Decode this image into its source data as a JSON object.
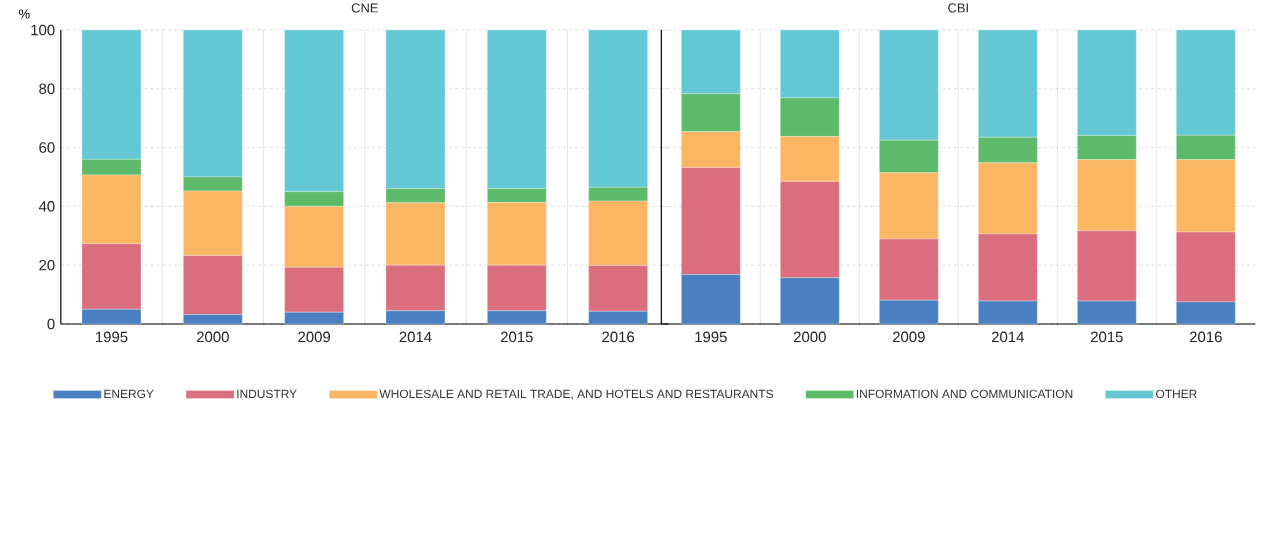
{
  "chart_data": [
    {
      "type": "bar",
      "stacked": true,
      "title": "CNE",
      "ylabel": "%",
      "categories": [
        "1995",
        "2000",
        "2009",
        "2014",
        "2015",
        "2016"
      ],
      "ylim": [
        0,
        100
      ],
      "yticks": [
        0,
        20,
        40,
        60,
        80,
        100
      ],
      "grid": "y",
      "legend": "bottom",
      "series": [
        {
          "name": "ENERGY",
          "color": "#4a7fc1",
          "values": [
            5,
            3.2,
            4,
            4.5,
            4.5,
            4.3
          ]
        },
        {
          "name": "INDUSTRY",
          "color": "#db6e7e",
          "values": [
            22.3,
            20.1,
            15.3,
            15.5,
            15.5,
            15.6
          ]
        },
        {
          "name": "WHOLESALE AND RETAIL TRADE, AND HOTELS AND RESTAURANTS",
          "color": "#fbb664",
          "values": [
            23.4,
            21.9,
            20.7,
            21.2,
            21.3,
            21.9
          ]
        },
        {
          "name": "INFORMATION AND COMMUNICATION",
          "color": "#5dba6a",
          "values": [
            5.3,
            4.8,
            5,
            4.9,
            4.8,
            4.7
          ]
        },
        {
          "name": "OTHER",
          "color": "#63c7d4",
          "values": [
            44,
            50,
            55,
            53.9,
            53.9,
            53.5
          ]
        }
      ]
    },
    {
      "type": "bar",
      "stacked": true,
      "title": "CBI",
      "categories": [
        "1995",
        "2000",
        "2009",
        "2014",
        "2015",
        "2016"
      ],
      "ylim": [
        0,
        100
      ],
      "yticks": [
        0,
        20,
        40,
        60,
        80,
        100
      ],
      "grid": "y",
      "tick_labels": "x",
      "series": [
        {
          "color": "#4a7fc1",
          "values": [
            16.8,
            15.7,
            8.1,
            7.8,
            7.8,
            7.5
          ]
        },
        {
          "color": "#db6e7e",
          "values": [
            36.4,
            32.8,
            20.8,
            22.8,
            23.9,
            23.8
          ]
        },
        {
          "color": "#fbb664",
          "values": [
            12.2,
            15.3,
            22.5,
            24.2,
            24.2,
            24.6
          ]
        },
        {
          "color": "#5dba6a",
          "values": [
            12.9,
            13.1,
            11.1,
            8.7,
            8.2,
            8.3
          ]
        },
        {
          "color": "#63c7d4",
          "values": [
            21.7,
            23.1,
            37.5,
            36.5,
            35.9,
            35.8
          ]
        }
      ]
    }
  ]
}
